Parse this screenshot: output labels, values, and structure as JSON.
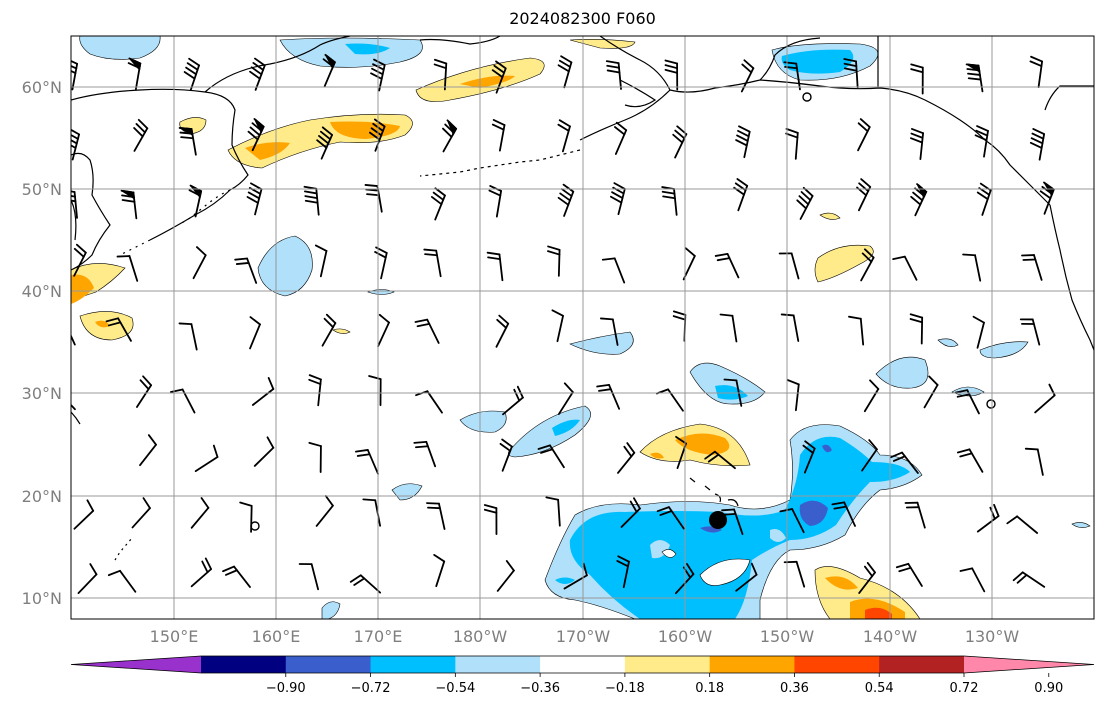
{
  "title": "2024082300 F060",
  "lat_labels": [
    "60°N",
    "50°N",
    "40°N",
    "30°N",
    "20°N",
    "10°N"
  ],
  "lon_labels": [
    "150°E",
    "160°E",
    "170°E",
    "180°W",
    "170°W",
    "160°W",
    "150°W",
    "140°W",
    "130°W"
  ],
  "colorbar": {
    "ticks": [
      "−0.90",
      "−0.72",
      "−0.54",
      "−0.36",
      "−0.18",
      "0.18",
      "0.36",
      "0.54",
      "0.72",
      "0.90"
    ],
    "colors": [
      "#9932cc",
      "#000080",
      "#3a5fcd",
      "#00bfff",
      "#b0e0fa",
      "#ffffff",
      "#ffeb8a",
      "#ffa500",
      "#ff4500",
      "#b22222",
      "#ff88aa"
    ]
  },
  "colors": {
    "pos_light": "#ffeb8a",
    "pos_mid": "#ffa500",
    "pos_dark": "#ff4500",
    "neg_light": "#b0e0fa",
    "neg_mid": "#00bfff",
    "neg_dark": "#3a5fcd",
    "grid": "#999999"
  }
}
